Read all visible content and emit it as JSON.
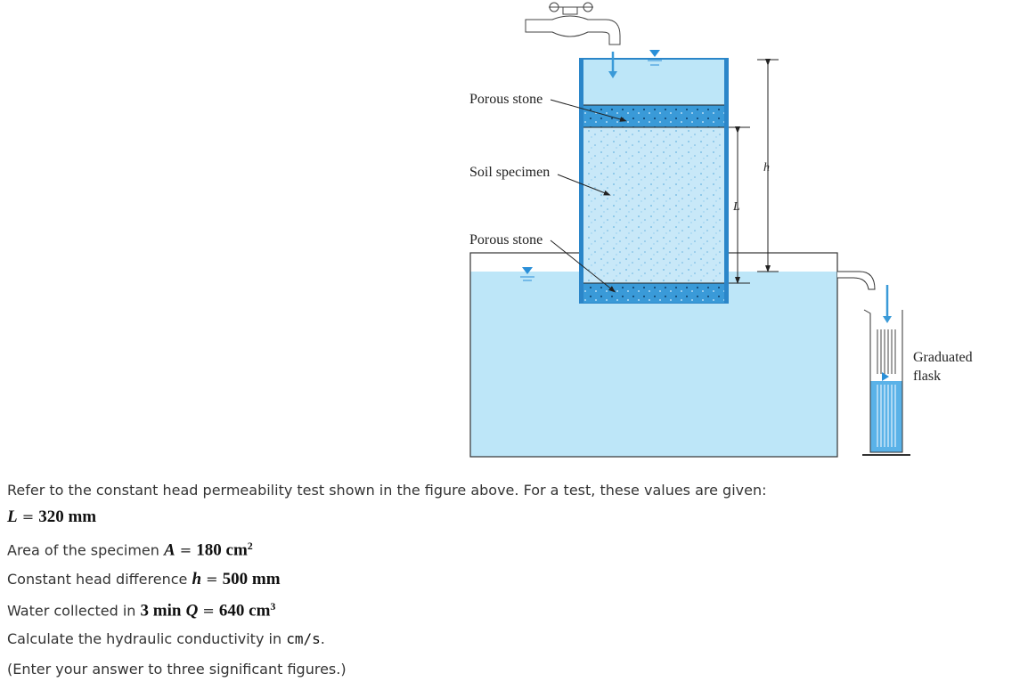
{
  "figure": {
    "top_stone_label": "Porous stone",
    "soil_label": "Soil specimen",
    "bottom_stone_label": "Porous stone",
    "head_symbol": "h",
    "length_symbol": "L",
    "flask_label": [
      "Graduated",
      "flask"
    ]
  },
  "problem": {
    "intro": "Refer to the constant head permeability test shown in the figure above. For a test, these values are given:",
    "given": [
      {
        "symbol": "L",
        "sign": "=",
        "value": "320 mm"
      },
      {
        "label": "Area of the specimen",
        "symbol": "A",
        "sign": "=",
        "value": "180 cm",
        "exponent": "2"
      },
      {
        "label": "Constant head difference",
        "symbol": "h",
        "sign": "=",
        "value": "500 mm"
      },
      {
        "label": "Water collected in",
        "duration": "3 min",
        "symbol": "Q",
        "sign": "=",
        "value": "640 cm",
        "exponent": "3"
      }
    ],
    "task": {
      "text": "Calculate the hydraulic conductivity in",
      "unit": "cm/s",
      "end": "."
    },
    "note": "(Enter your answer to three significant figures.)"
  }
}
